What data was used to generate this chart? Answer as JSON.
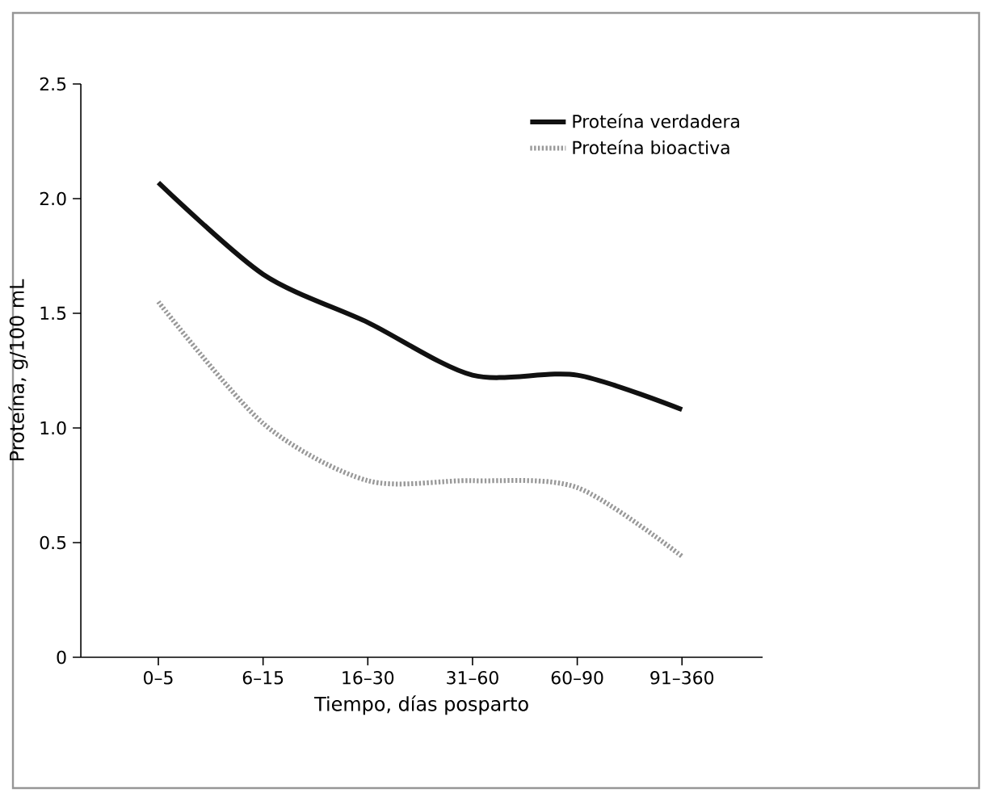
{
  "chart_data": {
    "type": "line",
    "xlabel": "Tiempo, días posparto",
    "ylabel": "Proteína, g/100 mL",
    "categories": [
      "0–5",
      "6–15",
      "16–30",
      "31–60",
      "60–90",
      "91–360"
    ],
    "series": [
      {
        "name": "Proteína verdadera",
        "color": "#111111",
        "line_style": "solid",
        "values": [
          2.07,
          1.67,
          1.46,
          1.23,
          1.23,
          1.08
        ]
      },
      {
        "name": "Proteína bioactiva",
        "color": "#999999",
        "line_style": "dotted",
        "values": [
          1.55,
          1.02,
          0.77,
          0.77,
          0.74,
          0.44
        ]
      }
    ],
    "ylim": [
      0,
      2.5
    ],
    "yticks": [
      0,
      0.5,
      {
        "value": 1,
        "label": "1.0"
      },
      1.5,
      {
        "value": 2,
        "label": "2.0"
      },
      2.5
    ],
    "grid": false,
    "legend": "top right",
    "marker": "none"
  }
}
